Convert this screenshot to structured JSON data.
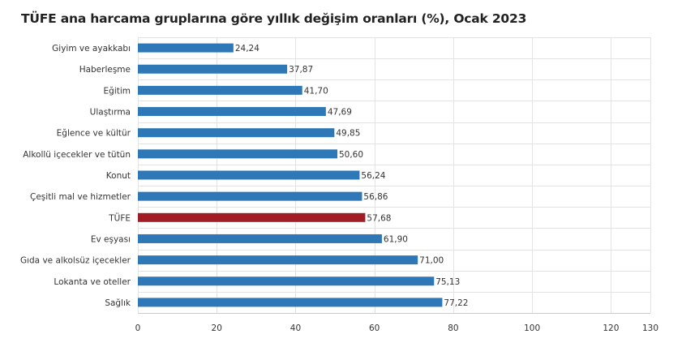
{
  "chart_data": {
    "type": "bar",
    "orientation": "horizontal",
    "title": "TÜFE ana harcama gruplarına göre yıllık değişim oranları (%), Ocak 2023",
    "categories": [
      "Giyim ve ayakkabı",
      "Haberleşme",
      "Eğitim",
      "Ulaştırma",
      "Eğlence ve kültür",
      "Alkollü içecekler ve tütün",
      "Konut",
      "Çeşitli mal ve hizmetler",
      "TÜFE",
      "Ev eşyası",
      "Gıda ve alkolsüz içecekler",
      "Lokanta ve oteller",
      "Sağlık"
    ],
    "values": [
      24.24,
      37.87,
      41.7,
      47.69,
      49.85,
      50.6,
      56.24,
      56.86,
      57.68,
      61.9,
      71.0,
      75.13,
      77.22
    ],
    "value_labels": [
      "24,24",
      "37,87",
      "41,70",
      "47,69",
      "49,85",
      "50,60",
      "56,24",
      "56,86",
      "57,68",
      "61,90",
      "71,00",
      "75,13",
      "77,22"
    ],
    "highlight_category": "TÜFE",
    "xlim": [
      0,
      130
    ],
    "xticks": [
      0,
      20,
      40,
      60,
      80,
      100,
      120,
      130
    ],
    "grid": true,
    "colors": {
      "bar": "#2e78b7",
      "highlight": "#a21c25",
      "grid": "#e3e3e3",
      "axis": "#cccccc"
    }
  }
}
